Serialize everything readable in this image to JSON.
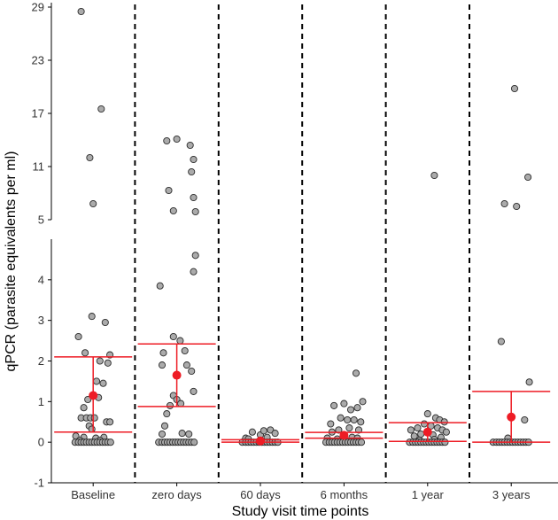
{
  "chart_data": {
    "type": "scatter",
    "xlabel": "Study visit time points",
    "ylabel": "qPCR (parasite equivalents per ml)",
    "categories": [
      "Baseline",
      "zero days",
      "60 days",
      "6 months",
      "1 year",
      "3 years"
    ],
    "lower_panel": {
      "ylim": [
        -1,
        5
      ],
      "yticks": [
        -1,
        0,
        1,
        2,
        3,
        4
      ]
    },
    "upper_panel": {
      "ylim": [
        5,
        29.5
      ],
      "yticks": [
        5,
        11,
        17,
        23,
        29
      ]
    },
    "summary": [
      {
        "category": "Baseline",
        "mean": 1.15,
        "lower": 0.25,
        "upper": 2.1
      },
      {
        "category": "zero days",
        "mean": 1.65,
        "lower": 0.88,
        "upper": 2.42
      },
      {
        "category": "60 days",
        "mean": 0.03,
        "lower": 0.0,
        "upper": 0.06
      },
      {
        "category": "6 months",
        "mean": 0.17,
        "lower": 0.1,
        "upper": 0.24
      },
      {
        "category": "1 year",
        "mean": 0.25,
        "lower": 0.02,
        "upper": 0.48
      },
      {
        "category": "3 years",
        "mean": 0.62,
        "lower": 0.0,
        "upper": 1.25
      }
    ],
    "points": [
      [
        [
          -0.18,
          28.5
        ],
        [
          -0.05,
          12.0
        ],
        [
          0.12,
          17.5
        ],
        [
          0.0,
          6.8
        ],
        [
          -0.22,
          2.6
        ],
        [
          -0.02,
          3.1
        ],
        [
          0.18,
          2.95
        ],
        [
          -0.12,
          2.2
        ],
        [
          0.25,
          2.15
        ],
        [
          0.1,
          2.0
        ],
        [
          0.22,
          1.95
        ],
        [
          0.05,
          1.5
        ],
        [
          0.15,
          1.45
        ],
        [
          0.08,
          1.1
        ],
        [
          -0.08,
          1.05
        ],
        [
          -0.14,
          0.85
        ],
        [
          -0.18,
          0.6
        ],
        [
          -0.1,
          0.6
        ],
        [
          -0.04,
          0.6
        ],
        [
          0.02,
          0.6
        ],
        [
          0.2,
          0.5
        ],
        [
          0.25,
          0.5
        ],
        [
          -0.06,
          0.4
        ],
        [
          -0.02,
          0.32
        ],
        [
          -0.26,
          0.15
        ],
        [
          -0.14,
          0.12
        ],
        [
          0.04,
          0.1
        ],
        [
          0.16,
          0.12
        ],
        [
          -0.2,
          0.05
        ],
        [
          0.1,
          0.05
        ],
        [
          -0.27,
          0.0
        ],
        [
          -0.22,
          0.0
        ],
        [
          -0.18,
          0.0
        ],
        [
          -0.14,
          0.0
        ],
        [
          -0.1,
          0.0
        ],
        [
          -0.06,
          0.0
        ],
        [
          -0.02,
          0.0
        ],
        [
          0.02,
          0.0
        ],
        [
          0.06,
          0.0
        ],
        [
          0.1,
          0.0
        ],
        [
          0.14,
          0.0
        ],
        [
          0.18,
          0.0
        ],
        [
          0.22,
          0.0
        ],
        [
          0.26,
          0.0
        ]
      ],
      [
        [
          -0.15,
          13.9
        ],
        [
          0.0,
          14.1
        ],
        [
          0.2,
          13.4
        ],
        [
          -0.12,
          8.3
        ],
        [
          0.25,
          11.8
        ],
        [
          0.22,
          10.4
        ],
        [
          -0.05,
          6.0
        ],
        [
          0.25,
          7.5
        ],
        [
          0.28,
          5.9
        ],
        [
          -0.25,
          3.85
        ],
        [
          0.28,
          4.6
        ],
        [
          0.25,
          4.2
        ],
        [
          -0.05,
          2.6
        ],
        [
          0.05,
          2.5
        ],
        [
          -0.2,
          2.2
        ],
        [
          0.12,
          2.25
        ],
        [
          -0.22,
          1.9
        ],
        [
          0.15,
          1.9
        ],
        [
          0.22,
          1.75
        ],
        [
          -0.05,
          1.15
        ],
        [
          0.0,
          1.05
        ],
        [
          0.06,
          0.95
        ],
        [
          -0.1,
          0.9
        ],
        [
          -0.15,
          0.7
        ],
        [
          0.25,
          1.25
        ],
        [
          -0.18,
          0.4
        ],
        [
          -0.22,
          0.2
        ],
        [
          0.08,
          0.22
        ],
        [
          0.18,
          0.2
        ],
        [
          -0.27,
          0.0
        ],
        [
          -0.22,
          0.0
        ],
        [
          -0.18,
          0.0
        ],
        [
          -0.14,
          0.0
        ],
        [
          -0.1,
          0.0
        ],
        [
          -0.06,
          0.0
        ],
        [
          -0.02,
          0.0
        ],
        [
          0.02,
          0.0
        ],
        [
          0.06,
          0.0
        ],
        [
          0.1,
          0.0
        ],
        [
          0.14,
          0.0
        ],
        [
          0.18,
          0.0
        ],
        [
          0.22,
          0.0
        ],
        [
          0.26,
          0.0
        ]
      ],
      [
        [
          -0.22,
          0.1
        ],
        [
          -0.12,
          0.25
        ],
        [
          0.0,
          0.18
        ],
        [
          0.15,
          0.3
        ],
        [
          0.22,
          0.22
        ],
        [
          0.05,
          0.28
        ],
        [
          -0.18,
          0.08
        ],
        [
          0.1,
          0.12
        ],
        [
          -0.27,
          0.0
        ],
        [
          -0.22,
          0.0
        ],
        [
          -0.18,
          0.0
        ],
        [
          -0.14,
          0.0
        ],
        [
          -0.1,
          0.0
        ],
        [
          -0.06,
          0.0
        ],
        [
          -0.02,
          0.0
        ],
        [
          0.02,
          0.0
        ],
        [
          0.06,
          0.0
        ],
        [
          0.1,
          0.0
        ],
        [
          0.14,
          0.0
        ],
        [
          0.18,
          0.0
        ],
        [
          0.22,
          0.0
        ],
        [
          0.26,
          0.0
        ]
      ],
      [
        [
          0.18,
          1.7
        ],
        [
          -0.15,
          0.9
        ],
        [
          0.0,
          0.95
        ],
        [
          0.1,
          0.8
        ],
        [
          0.2,
          0.85
        ],
        [
          -0.05,
          0.6
        ],
        [
          0.05,
          0.55
        ],
        [
          0.15,
          0.55
        ],
        [
          -0.2,
          0.45
        ],
        [
          0.25,
          0.5
        ],
        [
          0.28,
          1.0
        ],
        [
          -0.18,
          0.25
        ],
        [
          -0.08,
          0.3
        ],
        [
          0.08,
          0.35
        ],
        [
          0.22,
          0.3
        ],
        [
          -0.25,
          0.1
        ],
        [
          0.0,
          0.15
        ],
        [
          0.12,
          0.12
        ],
        [
          -0.1,
          0.08
        ],
        [
          0.2,
          0.1
        ],
        [
          -0.27,
          0.0
        ],
        [
          -0.22,
          0.0
        ],
        [
          -0.18,
          0.0
        ],
        [
          -0.14,
          0.0
        ],
        [
          -0.1,
          0.0
        ],
        [
          -0.06,
          0.0
        ],
        [
          -0.02,
          0.0
        ],
        [
          0.02,
          0.0
        ],
        [
          0.06,
          0.0
        ],
        [
          0.1,
          0.0
        ],
        [
          0.14,
          0.0
        ],
        [
          0.18,
          0.0
        ],
        [
          0.22,
          0.0
        ],
        [
          0.26,
          0.0
        ]
      ],
      [
        [
          0.1,
          10.0
        ],
        [
          0.0,
          0.7
        ],
        [
          0.12,
          0.6
        ],
        [
          0.18,
          0.55
        ],
        [
          0.25,
          0.5
        ],
        [
          -0.25,
          0.3
        ],
        [
          -0.15,
          0.35
        ],
        [
          -0.05,
          0.45
        ],
        [
          0.05,
          0.4
        ],
        [
          0.15,
          0.35
        ],
        [
          0.22,
          0.3
        ],
        [
          0.28,
          0.25
        ],
        [
          -0.2,
          0.15
        ],
        [
          -0.1,
          0.2
        ],
        [
          0.08,
          0.18
        ],
        [
          0.2,
          0.12
        ],
        [
          -0.12,
          0.05
        ],
        [
          0.1,
          0.07
        ],
        [
          -0.27,
          0.0
        ],
        [
          -0.22,
          0.0
        ],
        [
          -0.18,
          0.0
        ],
        [
          -0.14,
          0.0
        ],
        [
          -0.1,
          0.0
        ],
        [
          -0.06,
          0.0
        ],
        [
          -0.02,
          0.0
        ],
        [
          0.02,
          0.0
        ],
        [
          0.06,
          0.0
        ],
        [
          0.1,
          0.0
        ],
        [
          0.14,
          0.0
        ],
        [
          0.18,
          0.0
        ],
        [
          0.22,
          0.0
        ],
        [
          0.26,
          0.0
        ]
      ],
      [
        [
          0.05,
          19.8
        ],
        [
          0.25,
          9.8
        ],
        [
          -0.1,
          6.8
        ],
        [
          0.08,
          6.5
        ],
        [
          -0.15,
          2.48
        ],
        [
          0.27,
          1.48
        ],
        [
          0.2,
          0.55
        ],
        [
          -0.05,
          0.1
        ],
        [
          -0.27,
          0.0
        ],
        [
          -0.22,
          0.0
        ],
        [
          -0.18,
          0.0
        ],
        [
          -0.14,
          0.0
        ],
        [
          -0.1,
          0.0
        ],
        [
          -0.06,
          0.0
        ],
        [
          -0.02,
          0.0
        ],
        [
          0.02,
          0.0
        ],
        [
          0.06,
          0.0
        ],
        [
          0.1,
          0.0
        ],
        [
          0.14,
          0.0
        ],
        [
          0.18,
          0.0
        ],
        [
          0.22,
          0.0
        ],
        [
          0.26,
          0.0
        ]
      ]
    ],
    "colors": {
      "point_fill": "#a6a6a6",
      "point_stroke": "#2b2b2b",
      "summary": "#ee1c25",
      "divider": "#000000",
      "axis": "#000000",
      "tick_text": "#333333"
    }
  }
}
